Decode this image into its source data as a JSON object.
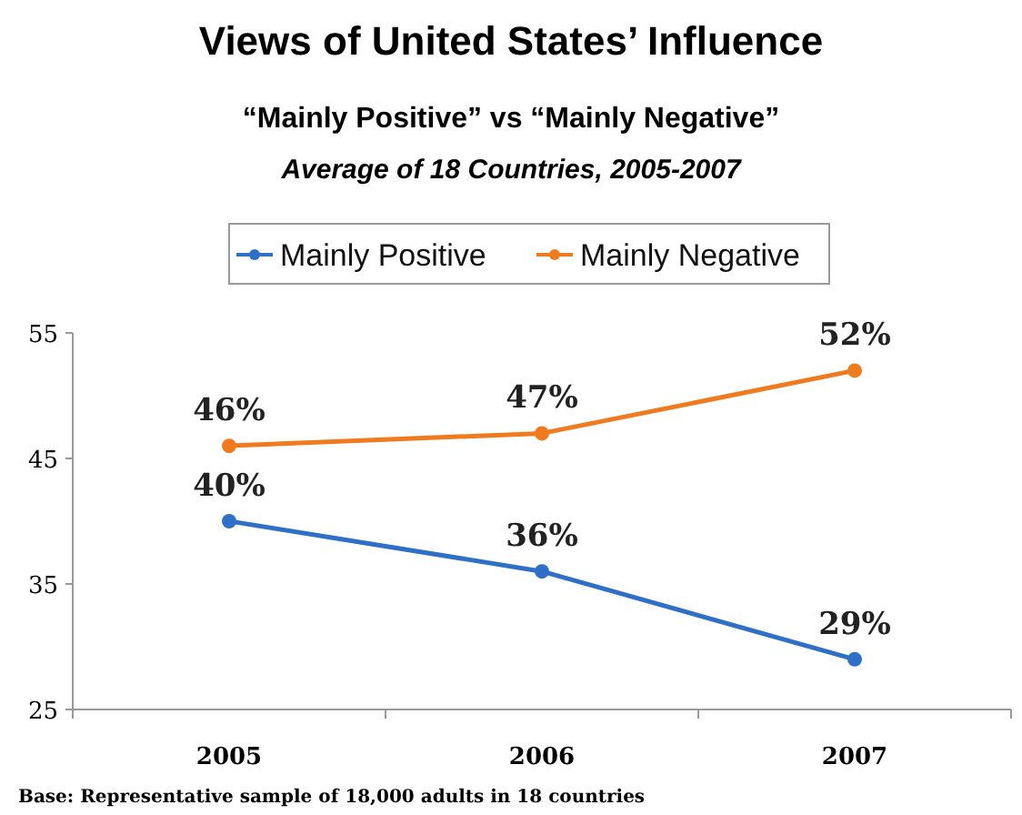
{
  "chart_data": {
    "type": "line",
    "title": "Views of United States’ Influence",
    "subtitle": "“Mainly Positive” vs “Mainly Negative”",
    "annotations": [
      "Average of 18 Countries, 2005-2007",
      "Base: Representative sample of 18,000 adults in 18 countries"
    ],
    "categories": [
      "2005",
      "2006",
      "2007"
    ],
    "series": [
      {
        "name": "Mainly Positive",
        "color": "#2e6fc7",
        "values": [
          40,
          36,
          29
        ],
        "value_labels": [
          "40%",
          "36%",
          "29%"
        ]
      },
      {
        "name": "Mainly Negative",
        "color": "#f07a1e",
        "values": [
          46,
          47,
          52
        ],
        "value_labels": [
          "46%",
          "47%",
          "52%"
        ]
      }
    ],
    "ylim": [
      25,
      55
    ],
    "yticks": [
      25,
      35,
      45,
      55
    ],
    "grid": false,
    "legend": "top",
    "marker": "circle",
    "line_style": "solid"
  }
}
